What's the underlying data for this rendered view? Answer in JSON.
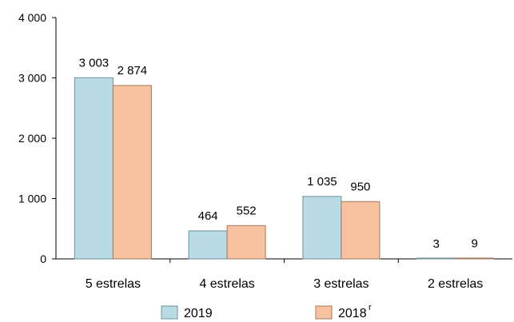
{
  "chart_data": {
    "type": "bar",
    "categories": [
      "5 estrelas",
      "4 estrelas",
      "3 estrelas",
      "2 estrelas"
    ],
    "series": [
      {
        "name": "2019",
        "values": [
          3003,
          464,
          1035,
          3
        ],
        "labels": [
          "3 003",
          "464",
          "1 035",
          "3"
        ],
        "color": "#b9dbe6",
        "stroke": "#6f8f99"
      },
      {
        "name": "2018",
        "name_superscript": "r",
        "values": [
          2874,
          552,
          950,
          9
        ],
        "labels": [
          "2 874",
          "552",
          "950",
          "9"
        ],
        "color": "#f8c2a1",
        "stroke": "#a07a5f"
      }
    ],
    "ylim": [
      0,
      4000
    ],
    "yticks": [
      0,
      1000,
      2000,
      3000,
      4000
    ],
    "ytick_labels": [
      "0",
      "1 000",
      "2 000",
      "3 000",
      "4 000"
    ],
    "grid": false,
    "legend_position": "bottom"
  }
}
